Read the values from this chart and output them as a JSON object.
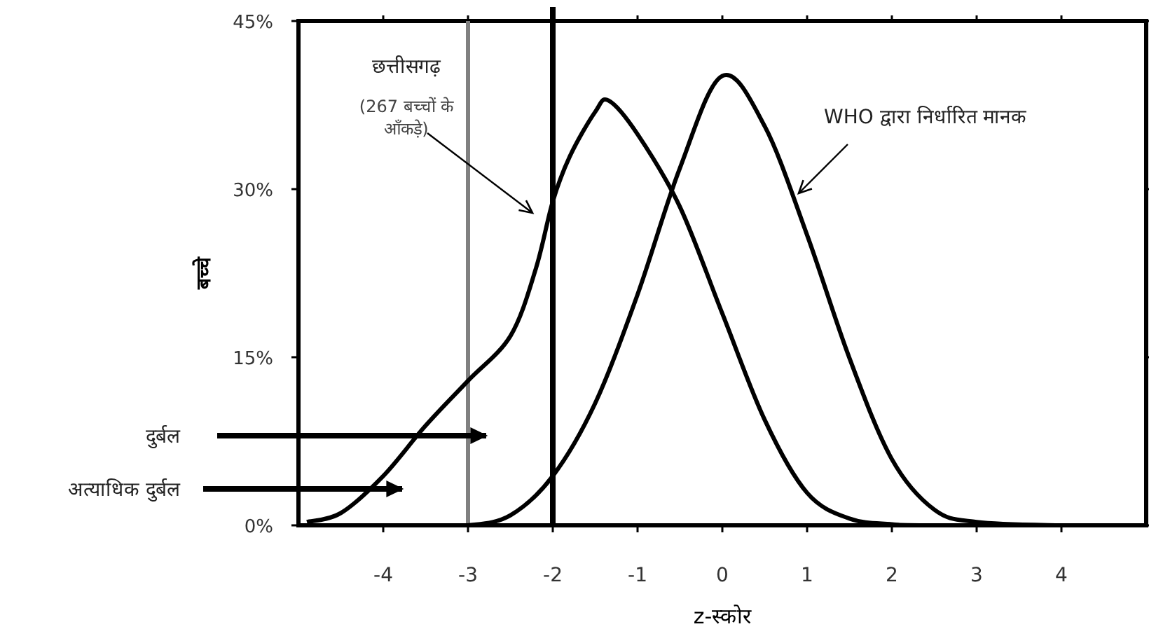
{
  "chart_data": {
    "type": "line",
    "xlabel": "z-स्कोर",
    "ylabel": "बच्चे",
    "x": [
      -5,
      -4.5,
      -4,
      -3.5,
      -3,
      -2.5,
      -2,
      -1.5,
      -1,
      -0.5,
      0,
      0.5,
      1,
      1.5,
      2,
      2.5,
      3,
      4,
      5
    ],
    "series": [
      {
        "color": "#000000",
        "x": [
          -4.9,
          -4.5,
          -4,
          -3.5,
          -3,
          -2.5,
          -2.2,
          -2,
          -1.8,
          -1.5,
          -1.34,
          -1,
          -0.5,
          0,
          0.5,
          1,
          1.5,
          2,
          2.5,
          5
        ],
        "values": [
          0.3,
          1.1,
          4.4,
          8.9,
          12.9,
          16.9,
          22.9,
          28.9,
          32.9,
          36.9,
          37.9,
          34.9,
          28.4,
          18.9,
          9.4,
          2.9,
          0.6,
          0.1,
          0,
          0
        ]
      },
      {
        "color": "#000000",
        "values": [
          0,
          0,
          0,
          0,
          0,
          0.9,
          4.4,
          10.9,
          20.6,
          31.9,
          40.1,
          35.6,
          25.9,
          14.9,
          5.9,
          1.4,
          0.3,
          0,
          0
        ]
      }
    ],
    "xlim": [
      -5,
      5
    ],
    "xticks": [
      -4,
      -3,
      -2,
      -1,
      0,
      1,
      2,
      3,
      4
    ],
    "ylim": [
      0,
      45
    ],
    "yticks": [
      {
        "value": 0,
        "label": "0%"
      },
      {
        "value": 15,
        "label": "15%"
      },
      {
        "value": 30,
        "label": "30%"
      },
      {
        "value": 45,
        "label": "45%"
      }
    ],
    "ref_lines": [
      {
        "axis": "x",
        "value": -3,
        "color": "#808080"
      },
      {
        "axis": "x",
        "value": -2,
        "color": "#000000"
      }
    ],
    "annotations": [
      "छत्तीसगढ़",
      "(267 बच्चों के आँकड़े)",
      "WHO द्वारा निर्धारित मानक",
      "दुर्बल",
      "अत्याधिक दुर्बल"
    ],
    "grid": false,
    "marker": "none",
    "line_style": "solid"
  }
}
